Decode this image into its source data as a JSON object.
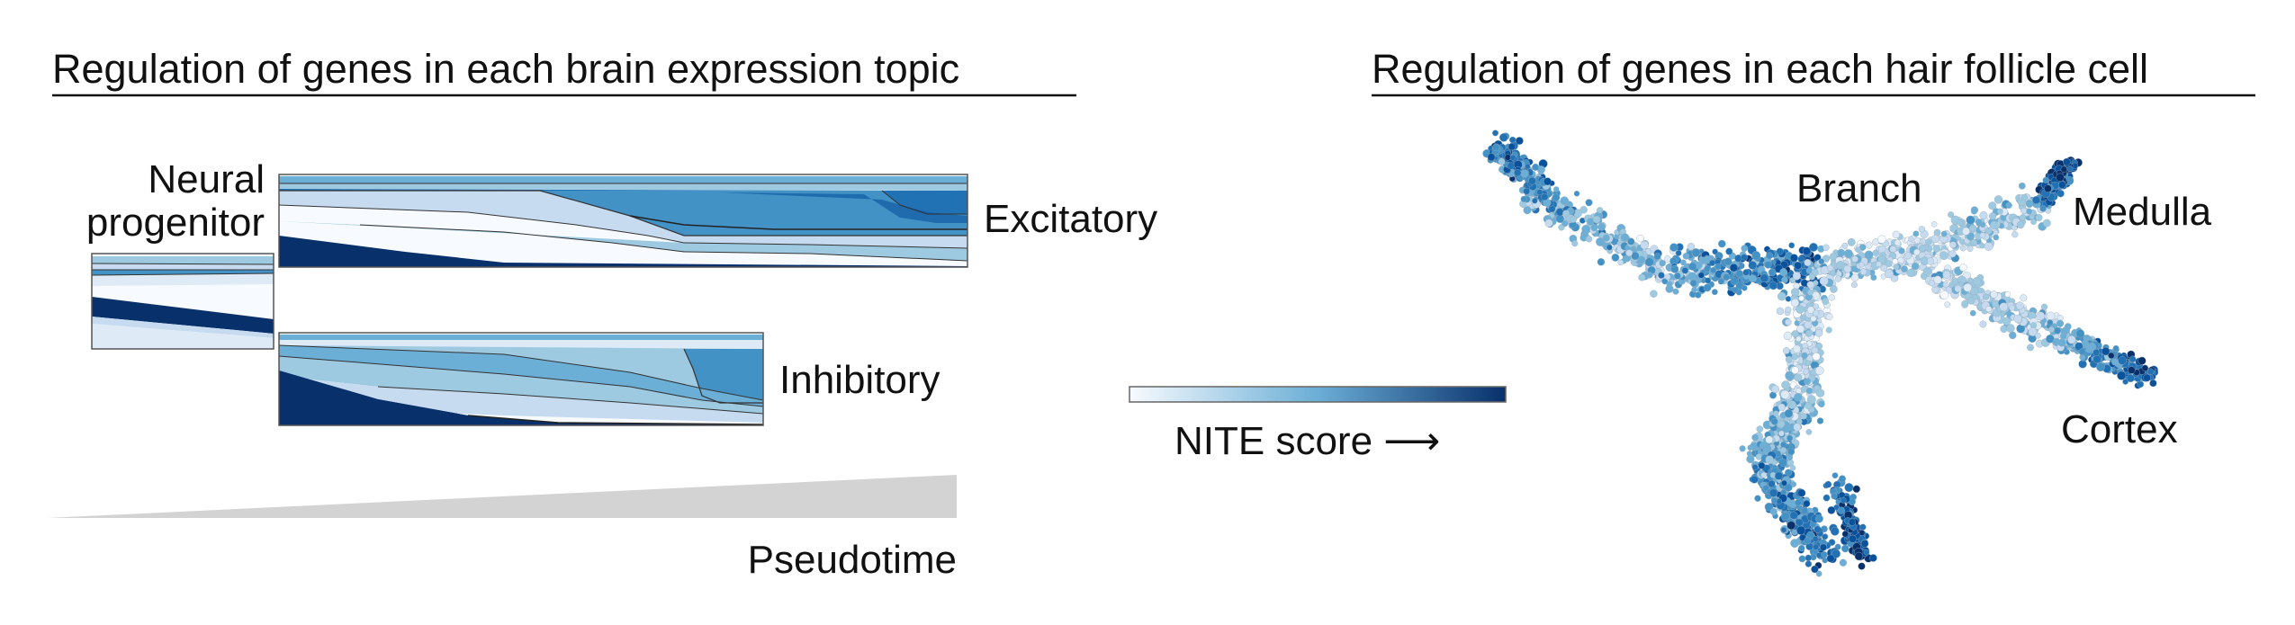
{
  "left_panel": {
    "title": "Regulation of genes in each brain expression topic",
    "labels": {
      "neural_line1": "Neural",
      "neural_line2": "progenitor",
      "excitatory": "Excitatory",
      "inhibitory": "Inhibitory",
      "pseudotime": "Pseudotime"
    }
  },
  "colorbar": {
    "label": "NITE score ⟶",
    "color_low": "#f4f8fd",
    "color_high": "#08306b"
  },
  "right_panel": {
    "title": "Regulation of genes in each hair follicle cell",
    "labels": {
      "branch": "Branch",
      "medulla": "Medulla",
      "cortex": "Cortex"
    }
  },
  "palette": [
    "#f7fbff",
    "#deebf7",
    "#c6dbef",
    "#9ecae1",
    "#6baed6",
    "#4292c6",
    "#2171b5",
    "#08519c",
    "#08306b"
  ]
}
